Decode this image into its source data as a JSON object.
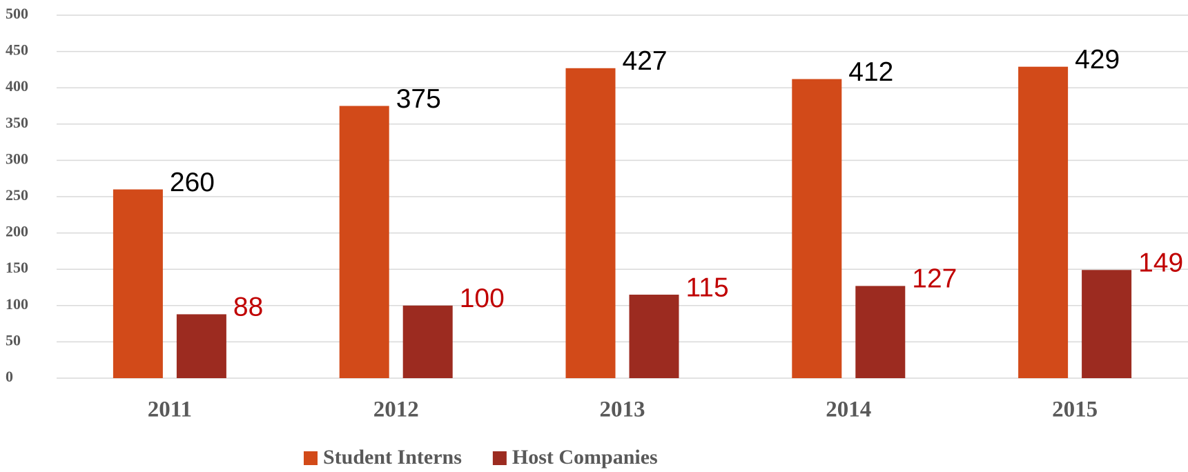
{
  "chart_data": {
    "type": "bar",
    "categories": [
      "2011",
      "2012",
      "2013",
      "2014",
      "2015"
    ],
    "series": [
      {
        "name": "Student Interns",
        "color": "#d24a19",
        "label_color": "#000000",
        "values": [
          260,
          375,
          427,
          412,
          429
        ]
      },
      {
        "name": "Host Companies",
        "color": "#9c2b20",
        "label_color": "#c00000",
        "values": [
          88,
          100,
          115,
          127,
          149
        ]
      }
    ],
    "ylim": [
      0,
      500
    ],
    "yticks": [
      0,
      50,
      100,
      150,
      200,
      250,
      300,
      350,
      400,
      450,
      500
    ],
    "grid": true,
    "legend": "bottom"
  }
}
